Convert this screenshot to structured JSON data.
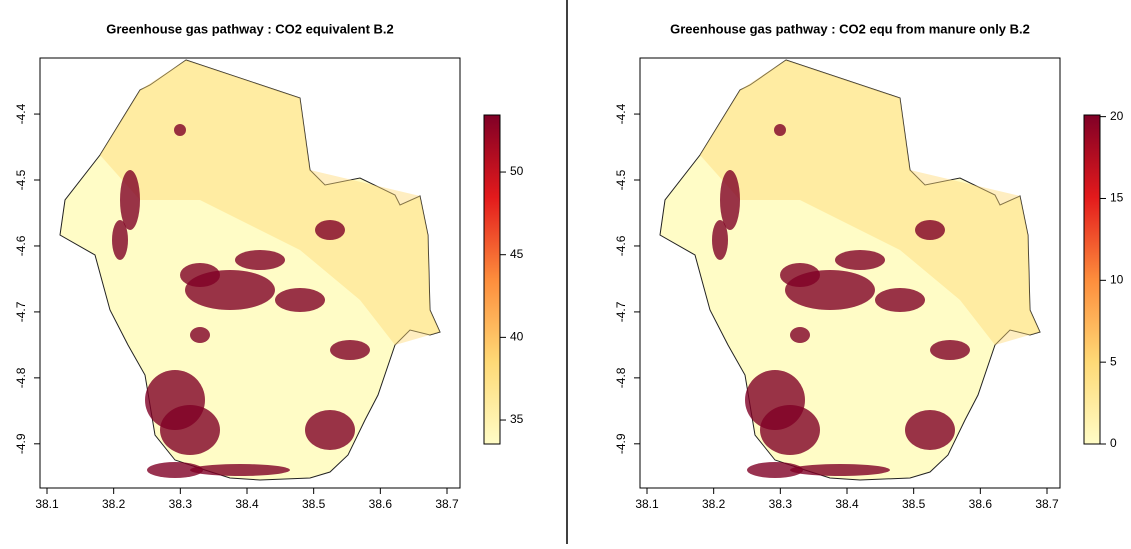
{
  "chart_data": [
    {
      "type": "raster",
      "title": "Greenhouse gas pathway : CO2 equivalent B.2",
      "xlim": [
        38.0895,
        38.7195
      ],
      "ylim": [
        -4.967,
        -4.315
      ],
      "xticks": [
        38.1,
        38.2,
        38.3,
        38.4,
        38.5,
        38.6,
        38.7
      ],
      "yticks": [
        -4.4,
        -4.5,
        -4.6,
        -4.7,
        -4.8,
        -4.9
      ],
      "colorbar": {
        "lim": [
          33.55,
          53.45
        ],
        "ticks": [
          35,
          40,
          45,
          50
        ],
        "colors": [
          "#fffcc6",
          "#fed976",
          "#fd8d3c",
          "#e31a1c",
          "#800026"
        ]
      }
    },
    {
      "type": "raster",
      "title": "Greenhouse gas pathway : CO2 equ from manure only B.2",
      "xlim": [
        38.0895,
        38.7195
      ],
      "ylim": [
        -4.967,
        -4.315
      ],
      "xticks": [
        38.1,
        38.2,
        38.3,
        38.4,
        38.5,
        38.6,
        38.7
      ],
      "yticks": [
        -4.4,
        -4.5,
        -4.6,
        -4.7,
        -4.8,
        -4.9
      ],
      "colorbar": {
        "lim": [
          0,
          20.1
        ],
        "ticks": [
          0,
          5,
          10,
          15,
          20
        ],
        "colors": [
          "#fffcc6",
          "#fed976",
          "#fd8d3c",
          "#e31a1c",
          "#800026"
        ]
      }
    }
  ]
}
